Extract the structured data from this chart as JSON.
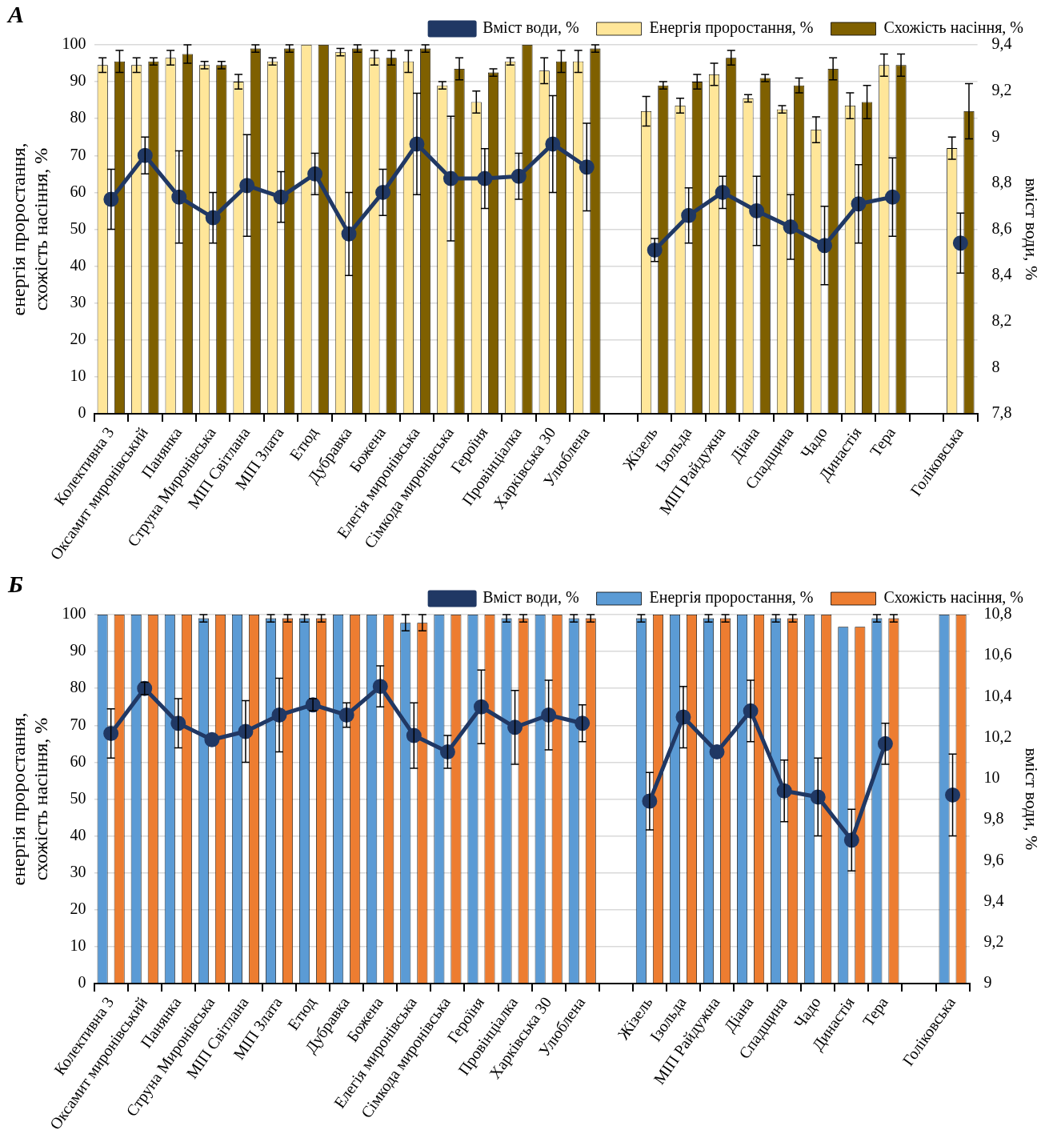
{
  "chart_data": [
    {
      "type": "bar",
      "title": "А",
      "ylabel": "енергія проростання, схожість насіння, %",
      "y2label": "вміст води, %",
      "categories": [
        "Колективна 3",
        "Оксамит миронівський",
        "Панянка",
        "Струна Миронівська",
        "МІП Світлана",
        "МІП Злата",
        "Етюд",
        "Дубравка",
        "Божена",
        "Елегія миронівська",
        "Сімкода миронівська",
        "Героїня",
        "Провінціалка",
        "Харківська 30",
        "Улюблена",
        null,
        "Жізель",
        "Ізольда",
        "МІП Райдужна",
        "Діана",
        "Спадщина",
        "Чадо",
        "Династія",
        "Тера",
        null,
        "Голіковська"
      ],
      "series": [
        {
          "name": "Енергія проростання, %",
          "color": "#ffe699",
          "values": [
            94.5,
            94.5,
            96.5,
            94.5,
            90,
            95.5,
            100,
            98,
            96.5,
            95.5,
            89,
            84.5,
            95.5,
            93,
            95.5,
            null,
            82,
            83.5,
            92,
            85.5,
            82.5,
            77,
            83.5,
            94.5,
            null,
            72
          ],
          "errors": [
            2,
            2,
            2,
            1,
            2,
            1,
            null,
            1,
            2,
            3,
            1,
            3,
            1,
            3.5,
            3,
            null,
            4,
            2,
            3,
            1,
            1,
            3.5,
            3.5,
            3,
            null,
            3
          ]
        },
        {
          "name": "Схожість насіння, %",
          "color": "#7f6000",
          "values": [
            95.5,
            95.5,
            97.5,
            94.5,
            99,
            99,
            100,
            99,
            96.5,
            99,
            93.5,
            92.5,
            100,
            95.5,
            99,
            null,
            89,
            90,
            96.5,
            91,
            89,
            93.5,
            84.5,
            94.5,
            null,
            82
          ],
          "errors": [
            3,
            1,
            2.5,
            1,
            1,
            1,
            null,
            1,
            2,
            1,
            3,
            1,
            null,
            3,
            1,
            null,
            1,
            2,
            2,
            1,
            2,
            3,
            4.5,
            3,
            null,
            7.5
          ]
        },
        {
          "name": "Вміст води, %",
          "type": "line",
          "axis": "y2",
          "color": "#203864",
          "values": [
            8.73,
            8.92,
            8.74,
            8.65,
            8.79,
            8.74,
            8.84,
            8.58,
            8.76,
            8.97,
            8.82,
            8.82,
            8.83,
            8.97,
            8.87,
            null,
            8.51,
            8.66,
            8.76,
            8.68,
            8.61,
            8.53,
            8.71,
            8.74,
            null,
            8.54
          ],
          "errors": [
            0.13,
            0.08,
            0.2,
            0.11,
            0.22,
            0.11,
            0.09,
            0.18,
            0.1,
            0.22,
            0.27,
            0.13,
            0.1,
            0.21,
            0.19,
            null,
            0.05,
            0.12,
            0.07,
            0.15,
            0.14,
            0.17,
            0.17,
            0.17,
            null,
            0.13
          ]
        }
      ],
      "ylim": [
        0,
        100
      ],
      "yticks": [
        0,
        10,
        20,
        30,
        40,
        50,
        60,
        70,
        80,
        90,
        100
      ],
      "y2lim": [
        7.8,
        9.4
      ],
      "y2ticks": [
        {
          "value": 7.8,
          "label": "7,8"
        },
        8,
        {
          "value": 8.2,
          "label": "8,2"
        },
        {
          "value": 8.4,
          "label": "8,4"
        },
        {
          "value": 8.6,
          "label": "8,6"
        },
        {
          "value": 8.8,
          "label": "8,8"
        },
        9,
        {
          "value": 9.2,
          "label": "9,2"
        },
        {
          "value": 9.4,
          "label": "9,4"
        }
      ],
      "grid": "y",
      "legend": "top right",
      "marker": "circle"
    },
    {
      "type": "bar",
      "title": "Б",
      "ylabel": "енергія проростання, схожість насіння, %",
      "y2label": "вміст води, %",
      "categories": [
        "Колективна 3",
        "Оксамит миронівський",
        "Панянка",
        "Струна Миронівська",
        "МІП Світлана",
        "МІП Злата",
        "Етюд",
        "Дубравка",
        "Божена",
        "Елегія миронівська",
        "Сімкода миронівська",
        "Героїня",
        "Провінціалка",
        "Харківська 30",
        "Улюблена",
        null,
        "Жізель",
        "Ізольда",
        "МІП Райдужна",
        "Діана",
        "Спадщина",
        "Чадо",
        "Династія",
        "Тера",
        null,
        "Голіковська"
      ],
      "series": [
        {
          "name": "Енергія проростання, %",
          "color": "#5b9bd5",
          "values": [
            100,
            100,
            100,
            99,
            100,
            99,
            99,
            100,
            100,
            97.8,
            100,
            100,
            99,
            100,
            99,
            null,
            99,
            100,
            99,
            100,
            99,
            100,
            96.7,
            99,
            null,
            100
          ],
          "errors": [
            null,
            null,
            null,
            1,
            null,
            1,
            1,
            null,
            null,
            2.2,
            null,
            null,
            1,
            null,
            1,
            null,
            1,
            null,
            1,
            null,
            1,
            null,
            null,
            1,
            null,
            null
          ]
        },
        {
          "name": "Схожість насіння, %",
          "color": "#ed7d31",
          "values": [
            100,
            100,
            100,
            100,
            100,
            99,
            99,
            100,
            100,
            97.8,
            100,
            100,
            99,
            100,
            99,
            null,
            100,
            100,
            99,
            100,
            99,
            100,
            96.7,
            99,
            null,
            100
          ],
          "errors": [
            null,
            null,
            null,
            null,
            null,
            1,
            1,
            null,
            null,
            2.2,
            null,
            null,
            1,
            null,
            1,
            null,
            null,
            null,
            1,
            null,
            1,
            null,
            null,
            1,
            null,
            null
          ]
        },
        {
          "name": "Вміст води, %",
          "type": "line",
          "axis": "y2",
          "color": "#203864",
          "values": [
            10.22,
            10.44,
            10.27,
            10.19,
            10.23,
            10.31,
            10.36,
            10.31,
            10.45,
            10.21,
            10.13,
            10.35,
            10.25,
            10.31,
            10.27,
            null,
            9.89,
            10.3,
            10.13,
            10.33,
            9.94,
            9.91,
            9.7,
            10.17,
            null,
            9.92
          ],
          "errors": [
            0.12,
            0.03,
            0.12,
            null,
            0.15,
            0.18,
            0.03,
            0.06,
            0.1,
            0.16,
            0.08,
            0.18,
            0.18,
            0.17,
            0.09,
            null,
            0.14,
            0.15,
            null,
            0.15,
            0.15,
            0.19,
            0.15,
            0.1,
            null,
            0.2
          ]
        }
      ],
      "ylim": [
        0,
        100
      ],
      "yticks": [
        0,
        10,
        20,
        30,
        40,
        50,
        60,
        70,
        80,
        90,
        100
      ],
      "y2lim": [
        9,
        10.8
      ],
      "y2ticks": [
        9,
        {
          "value": 9.2,
          "label": "9,2"
        },
        {
          "value": 9.4,
          "label": "9,4"
        },
        {
          "value": 9.6,
          "label": "9,6"
        },
        {
          "value": 9.8,
          "label": "9,8"
        },
        10,
        {
          "value": 10.2,
          "label": "10,2"
        },
        {
          "value": 10.4,
          "label": "10,4"
        },
        {
          "value": 10.6,
          "label": "10,6"
        },
        {
          "value": 10.8,
          "label": "10,8"
        }
      ],
      "grid": "y",
      "legend": "top right",
      "marker": "circle"
    }
  ]
}
